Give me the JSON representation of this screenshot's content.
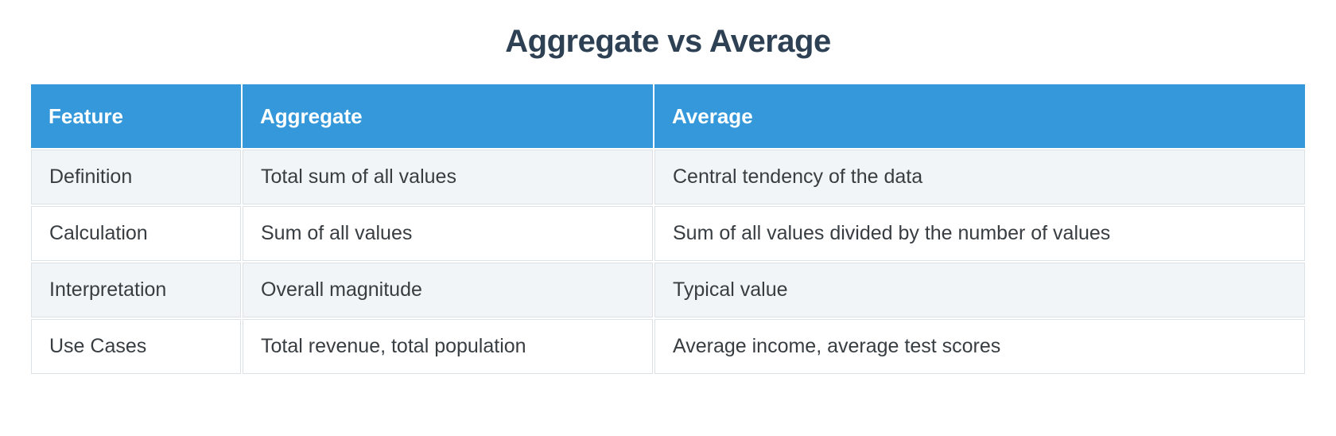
{
  "page": {
    "title": "Aggregate vs Average"
  },
  "table": {
    "columns": [
      {
        "label": "Feature"
      },
      {
        "label": "Aggregate"
      },
      {
        "label": "Average"
      }
    ],
    "rows": [
      {
        "feature": "Definition",
        "aggregate": "Total sum of all values",
        "average": "Central tendency of the data"
      },
      {
        "feature": "Calculation",
        "aggregate": "Sum of all values",
        "average": "Sum of all values divided by the number of values"
      },
      {
        "feature": "Interpretation",
        "aggregate": "Overall magnitude",
        "average": "Typical value"
      },
      {
        "feature": "Use Cases",
        "aggregate": "Total revenue, total population",
        "average": "Average income, average test scores"
      }
    ],
    "colors": {
      "header_bg": "#3498db",
      "header_text": "#ffffff",
      "row_alt_bg": "#f1f5f8",
      "row_bg": "#ffffff",
      "cell_border": "#dce1e6",
      "cell_text": "#383d42",
      "title_text": "#2e4053"
    }
  }
}
